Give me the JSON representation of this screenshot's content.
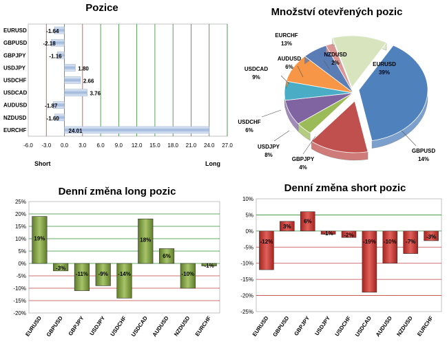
{
  "chart_data": [
    {
      "type": "bar",
      "orientation": "horizontal",
      "title": "Pozice",
      "categories": [
        "EURUSD",
        "GBPUSD",
        "GBPJPY",
        "USDJPY",
        "USDCHF",
        "USDCAD",
        "AUDUSD",
        "NZDUSD",
        "EURCHF"
      ],
      "values": [
        -1.64,
        -2.18,
        -1.16,
        1.8,
        2.66,
        3.76,
        -1.87,
        -1.6,
        24.01
      ],
      "value_labels": [
        "-1.64",
        "-2.18",
        "-1.16",
        "1.80",
        "2.66",
        "3.76",
        "-1.87",
        "-1.60",
        "24.01"
      ],
      "xlim": [
        -6.0,
        27.0
      ],
      "xticks": [
        "-6.0",
        "-3.0",
        "0.0",
        "3.0",
        "6.0",
        "9.0",
        "12.0",
        "15.0",
        "18.0",
        "21.0",
        "24.0",
        "27.0"
      ],
      "short_label": "Short",
      "long_label": "Long"
    },
    {
      "type": "pie",
      "title": "Množství otevřených pozic",
      "slices": [
        {
          "label": "EURUSD",
          "value": 39,
          "text": "39%",
          "color": "#4f81bd"
        },
        {
          "label": "GBPUSD",
          "value": 14,
          "text": "14%",
          "color": "#c0504d"
        },
        {
          "label": "GBPJPY",
          "value": 4,
          "text": "4%",
          "color": "#9bbb59"
        },
        {
          "label": "USDJPY",
          "value": 8,
          "text": "8%",
          "color": "#8064a2"
        },
        {
          "label": "USDCHF",
          "value": 6,
          "text": "6%",
          "color": "#4bacc6"
        },
        {
          "label": "USDCAD",
          "value": 9,
          "text": "9%",
          "color": "#f79646"
        },
        {
          "label": "AUDUSD",
          "value": 6,
          "text": "6%",
          "color": "#5b7db5"
        },
        {
          "label": "NZDUSD",
          "value": 2,
          "text": "2%",
          "color": "#d99694"
        },
        {
          "label": "EURCHF",
          "value": 13,
          "text": "13%",
          "color": "#d7e4bd"
        }
      ]
    },
    {
      "type": "bar",
      "title": "Denní změna long pozic",
      "categories": [
        "EURUSD",
        "GBPUSD",
        "GBPJPY",
        "USDJPY",
        "USDCHF",
        "USDCAD",
        "AUDUSD",
        "NZDUSD",
        "EURCHF"
      ],
      "values": [
        19,
        -3,
        -11,
        -9,
        -14,
        18,
        6,
        -10,
        -1
      ],
      "value_labels": [
        "19%",
        "-3%",
        "-11%",
        "-9%",
        "-14%",
        "18%",
        "6%",
        "-10%",
        "-1%"
      ],
      "ylim": [
        -20,
        25
      ],
      "yticks": [
        "-20%",
        "-15%",
        "-10%",
        "-5%",
        "0%",
        "5%",
        "10%",
        "15%",
        "20%",
        "25%"
      ]
    },
    {
      "type": "bar",
      "title": "Denní změna short pozic",
      "categories": [
        "EURUSD",
        "GBPUSD",
        "GBPJPY",
        "USDJPY",
        "USDCHF",
        "USDCAD",
        "AUDUSD",
        "NZDUSD",
        "EURCHF"
      ],
      "values": [
        -12,
        3,
        6,
        -1,
        -2,
        -19,
        -10,
        -7,
        -3
      ],
      "value_labels": [
        "-12%",
        "3%",
        "6%",
        "-1%",
        "-2%",
        "-19%",
        "-10%",
        "-7%",
        "-3%"
      ],
      "ylim": [
        -25,
        10
      ],
      "yticks": [
        "-25%",
        "-20%",
        "-15%",
        "-10%",
        "-5%",
        "0%",
        "5%",
        "10%"
      ]
    }
  ],
  "colors": {
    "long_fill": "#7a9a3a",
    "short_fill": "#c0302a",
    "pos_bar_fill": "#a9c0e0",
    "grid_green": "#2e8b2e",
    "grid_red": "#c04040"
  }
}
